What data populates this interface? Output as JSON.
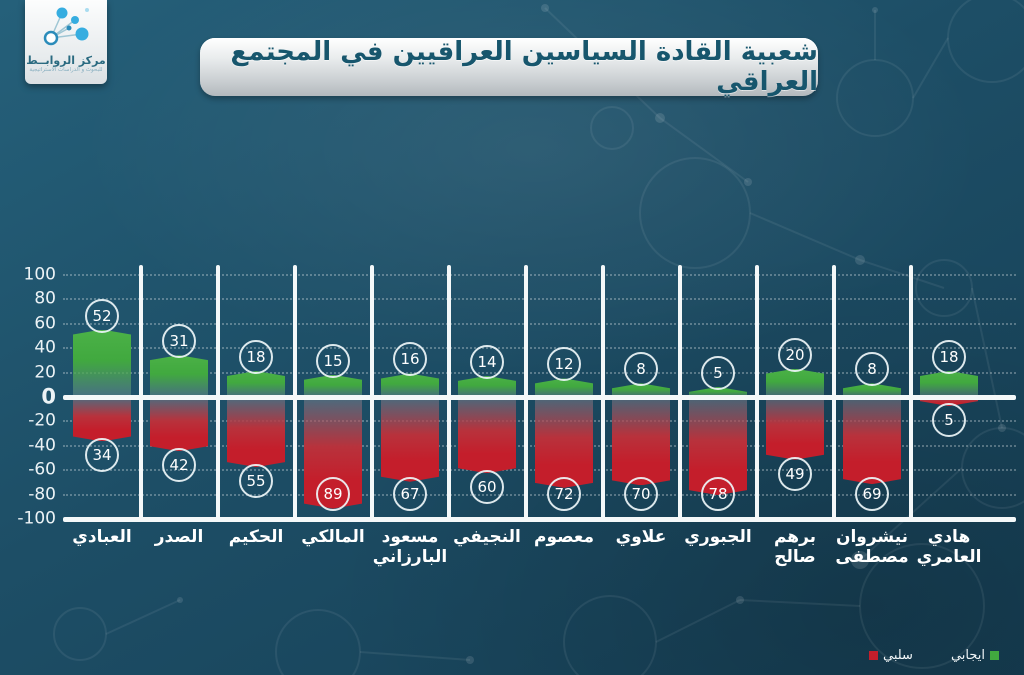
{
  "logo": {
    "title": "مركز الروابــط",
    "subtitle": "للبحوث و الدراسات الاستراتيجية"
  },
  "header": {
    "title": "شعبية القادة السياسين العراقيين في المجتمع العراقي"
  },
  "legend": {
    "positive_label": "ايجابي",
    "negative_label": "سلبي",
    "positive_color": "#41a93f",
    "negative_color": "#c41e2b"
  },
  "chart_data": {
    "type": "bar",
    "subtype": "diverging-vertical",
    "title": "شعبية القادة السياسين العراقيين في المجتمع العراقي",
    "categories": [
      "العبادي",
      "الصدر",
      "الحكيم",
      "المالكي",
      "مسعود\nالبارزاني",
      "النجيفي",
      "معصوم",
      "علاوي",
      "الجبوري",
      "برهم\nصالح",
      "نيشروان\nمصطفى",
      "هادي\nالعامري"
    ],
    "series": [
      {
        "name": "ايجابي",
        "color": "#41a93f",
        "values": [
          52,
          31,
          18,
          15,
          16,
          14,
          12,
          8,
          5,
          20,
          8,
          18
        ]
      },
      {
        "name": "سلبي",
        "color": "#c41e2b",
        "values": [
          -34,
          -42,
          -55,
          -89,
          -67,
          -60,
          -72,
          -70,
          -78,
          -49,
          -69,
          -5
        ]
      }
    ],
    "ylim": [
      -100,
      100
    ],
    "yticks": [
      100,
      80,
      60,
      40,
      20,
      0,
      -20,
      -40,
      -60,
      -80,
      -100
    ],
    "grid": "dotted-horizontal",
    "category_separators": "white-vertical-lines",
    "value_labels": "circled",
    "legend_position": "bottom-right"
  }
}
